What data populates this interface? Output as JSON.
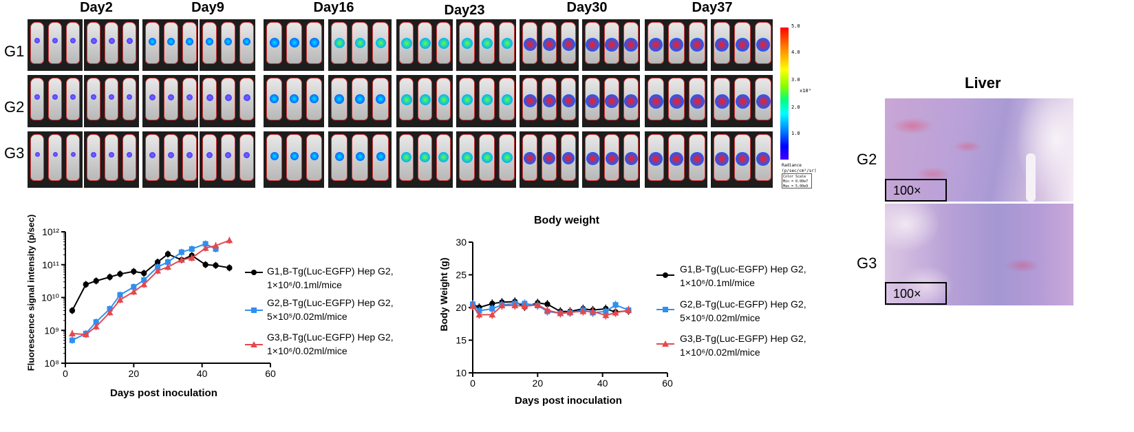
{
  "imaging": {
    "days": [
      "Day2",
      "Day9",
      "Day16",
      "Day23",
      "Day30",
      "Day37"
    ],
    "groups": [
      "G1",
      "G2",
      "G3"
    ],
    "colorbar_ticks": [
      "5.0",
      "4.0",
      "3.0",
      "2.0",
      "1.0"
    ],
    "colorbar_exponent": "x10⁹",
    "colorbar_units": "Radiance (p/sec/cm²/sr)",
    "colorbar_scale": "Color Scale\nMin = 0.00e7\nMax = 5.00e9"
  },
  "histology": {
    "title": "Liver",
    "rows": [
      {
        "label": "G2",
        "magnification": "100×"
      },
      {
        "label": "G3",
        "magnification": "100×"
      }
    ]
  },
  "legend_entries": [
    {
      "line1": "G1,B-Tg(Luc-EGFP) Hep G2,",
      "line2": "1×10⁶/0.1ml/mice",
      "color": "#000000",
      "marker": "circle"
    },
    {
      "line1": "G2,B-Tg(Luc-EGFP) Hep G2,",
      "line2": "5×10⁵/0.02ml/mice",
      "color": "#2f8ff0",
      "marker": "square"
    },
    {
      "line1": "G3,B-Tg(Luc-EGFP) Hep G2,",
      "line2": "1×10⁶/0.02ml/mice",
      "color": "#e5484d",
      "marker": "triangle"
    }
  ],
  "chart_data": [
    {
      "type": "line",
      "title": "",
      "xlabel": "Days post inoculation",
      "ylabel": "Fluorescence signal intensity (p/sec)",
      "xlim": [
        0,
        60
      ],
      "xticks": [
        0,
        20,
        40,
        60
      ],
      "ylim": [
        100000000.0,
        1000000000000.0
      ],
      "yscale": "log",
      "yticks": [
        "10⁸",
        "10⁹",
        "10¹⁰",
        "10¹¹",
        "10¹²"
      ],
      "series": [
        {
          "name": "G1,B-Tg(Luc-EGFP) Hep G2, 1×10⁶/0.1ml/mice",
          "color": "#000000",
          "marker": "circle",
          "x": [
            2,
            6,
            9,
            13,
            16,
            20,
            23,
            27,
            30,
            34,
            37,
            41,
            44,
            48
          ],
          "y": [
            4000000000.0,
            25000000000.0,
            32000000000.0,
            42000000000.0,
            52000000000.0,
            62000000000.0,
            55000000000.0,
            120000000000.0,
            210000000000.0,
            140000000000.0,
            190000000000.0,
            100000000000.0,
            95000000000.0,
            80000000000.0
          ]
        },
        {
          "name": "G2,B-Tg(Luc-EGFP) Hep G2, 5×10⁵/0.02ml/mice",
          "color": "#2f8ff0",
          "marker": "square",
          "x": [
            2,
            6,
            9,
            13,
            16,
            20,
            23,
            27,
            30,
            34,
            37,
            41,
            44
          ],
          "y": [
            500000000.0,
            800000000.0,
            1800000000.0,
            4500000000.0,
            12000000000.0,
            21000000000.0,
            34000000000.0,
            85000000000.0,
            120000000000.0,
            240000000000.0,
            300000000000.0,
            430000000000.0,
            300000000000.0
          ]
        },
        {
          "name": "G3,B-Tg(Luc-EGFP) Hep G2, 1×10⁶/0.02ml/mice",
          "color": "#e5484d",
          "marker": "triangle",
          "x": [
            2,
            6,
            9,
            13,
            16,
            20,
            23,
            27,
            30,
            34,
            37,
            41,
            44,
            48
          ],
          "y": [
            800000000.0,
            750000000.0,
            1300000000.0,
            3500000000.0,
            8500000000.0,
            15000000000.0,
            25000000000.0,
            65000000000.0,
            85000000000.0,
            140000000000.0,
            160000000000.0,
            320000000000.0,
            380000000000.0,
            550000000000.0
          ]
        }
      ]
    },
    {
      "type": "line",
      "title": "Body weight",
      "xlabel": "Days post inoculation",
      "ylabel": "Body Weight (g)",
      "xlim": [
        0,
        60
      ],
      "xticks": [
        0,
        20,
        40,
        60
      ],
      "ylim": [
        10,
        30
      ],
      "yticks": [
        10,
        15,
        20,
        25,
        30
      ],
      "series": [
        {
          "name": "G1,B-Tg(Luc-EGFP) Hep G2, 1×10⁶/0.1ml/mice",
          "color": "#000000",
          "marker": "circle",
          "x": [
            0,
            2,
            6,
            9,
            13,
            16,
            20,
            23,
            27,
            30,
            34,
            37,
            41,
            44,
            48
          ],
          "y": [
            20.5,
            20.0,
            20.6,
            20.8,
            20.9,
            20.1,
            20.7,
            20.5,
            19.4,
            19.4,
            19.8,
            19.6,
            19.8,
            19.3,
            19.5
          ]
        },
        {
          "name": "G2,B-Tg(Luc-EGFP) Hep G2, 5×10⁵/0.02ml/mice",
          "color": "#2f8ff0",
          "marker": "square",
          "x": [
            0,
            2,
            6,
            9,
            13,
            16,
            20,
            23,
            27,
            30,
            34,
            37,
            41,
            44,
            48
          ],
          "y": [
            20.5,
            19.5,
            19.8,
            20.4,
            20.6,
            20.6,
            20.3,
            19.4,
            19.1,
            19.2,
            19.6,
            19.2,
            19.4,
            20.4,
            19.6
          ]
        },
        {
          "name": "G3,B-Tg(Luc-EGFP) Hep G2, 1×10⁶/0.02ml/mice",
          "color": "#e5484d",
          "marker": "triangle",
          "x": [
            0,
            2,
            6,
            9,
            13,
            16,
            20,
            23,
            27,
            30,
            34,
            37,
            41,
            44,
            48
          ],
          "y": [
            20.2,
            18.9,
            18.9,
            20.3,
            20.3,
            20.2,
            20.4,
            19.6,
            19.1,
            19.3,
            19.4,
            19.4,
            18.8,
            19.2,
            19.6
          ]
        }
      ]
    }
  ]
}
